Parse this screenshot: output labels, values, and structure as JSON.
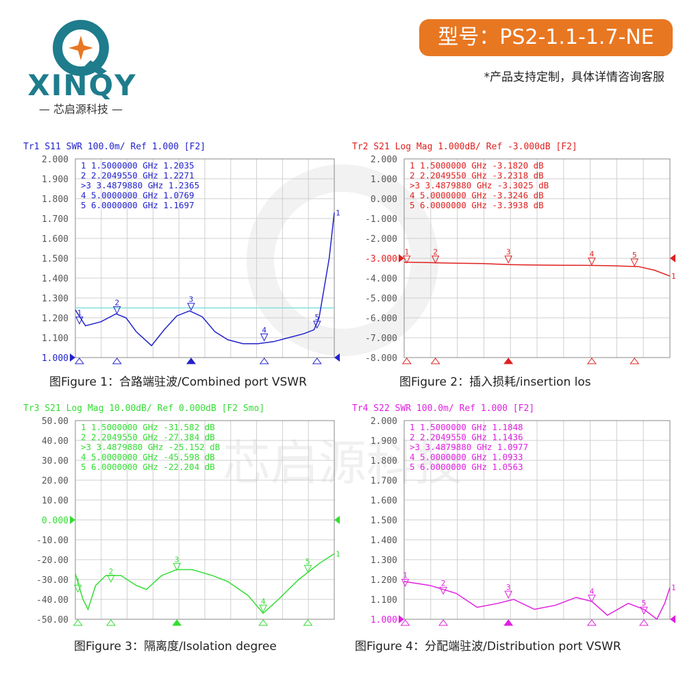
{
  "header": {
    "brand_name": "XINQY",
    "brand_subtitle": "— 芯启源科技 —",
    "model_label": "型号：PS2-1.1-1.7-NE",
    "note": "*产品支持定制，具体详情咨询客服",
    "brand_color": "#1e7c8c",
    "badge_color": "#e87722"
  },
  "watermark": {
    "text": "芯启源科技"
  },
  "captions": [
    "图Figure 1：合路端驻波/Combined port VSWR",
    "图Figure 2：插入损耗/insertion los",
    "图Figure 3：隔离度/Isolation degree",
    "图Figure 4：分配端驻波/Distribution port VSWR"
  ],
  "chart_data": [
    {
      "type": "line",
      "header": "Tr1 S11 SWR 100.0m/ Ref 1.000 [F2]",
      "color": "#2222cc",
      "ylim": [
        1.0,
        2.0
      ],
      "yticks": [
        "2.000",
        "1.900",
        "1.800",
        "1.700",
        "1.600",
        "1.500",
        "1.400",
        "1.300",
        "1.200",
        "1.100",
        "1.000"
      ],
      "ref_value": "1.000",
      "ref_line": 1.25,
      "ref_line_color": "#7fe0e0",
      "xlim": [
        1.0,
        6.1
      ],
      "marker_table": [
        {
          "id": "1",
          "freq": "1.5000000 GHz",
          "value": "1.2035"
        },
        {
          "id": "2",
          "freq": "2.2049550 GHz",
          "value": "1.2271"
        },
        {
          "id": ">3",
          "freq": "3.4879880 GHz",
          "value": "1.2365"
        },
        {
          "id": "4",
          "freq": "5.0000000 GHz",
          "value": "1.0769"
        },
        {
          "id": "5",
          "freq": "6.0000000 GHz",
          "value": "1.1697"
        }
      ],
      "markers": [
        {
          "label": "1",
          "x": 1.08,
          "y": 1.163
        },
        {
          "label": "2",
          "x": 1.82,
          "y": 1.215
        },
        {
          "label": "3",
          "x": 3.28,
          "y": 1.232
        },
        {
          "label": "4",
          "x": 4.72,
          "y": 1.078
        },
        {
          "label": "5",
          "x": 5.76,
          "y": 1.142
        }
      ],
      "points": [
        [
          1.0,
          1.24
        ],
        [
          1.2,
          1.16
        ],
        [
          1.5,
          1.18
        ],
        [
          1.8,
          1.22
        ],
        [
          2.0,
          1.2
        ],
        [
          2.2,
          1.13
        ],
        [
          2.5,
          1.06
        ],
        [
          2.75,
          1.14
        ],
        [
          3.0,
          1.21
        ],
        [
          3.25,
          1.235
        ],
        [
          3.5,
          1.205
        ],
        [
          3.75,
          1.13
        ],
        [
          4.0,
          1.09
        ],
        [
          4.3,
          1.07
        ],
        [
          4.6,
          1.07
        ],
        [
          4.9,
          1.08
        ],
        [
          5.2,
          1.1
        ],
        [
          5.5,
          1.12
        ],
        [
          5.7,
          1.14
        ],
        [
          5.8,
          1.2
        ],
        [
          5.9,
          1.35
        ],
        [
          6.0,
          1.5
        ],
        [
          6.1,
          1.73
        ]
      ]
    },
    {
      "type": "line",
      "header": "Tr2 S21 Log Mag 1.000dB/ Ref -3.000dB [F2]",
      "color": "#e02020",
      "ylim": [
        -8.0,
        2.0
      ],
      "yticks": [
        "2.000",
        "1.000",
        "0.000",
        "-1.000",
        "-2.000",
        "-3.000",
        "-4.000",
        "-5.000",
        "-6.000",
        "-7.000",
        "-8.000"
      ],
      "ref_value": "-3.000",
      "ref_line": null,
      "xlim": [
        1.0,
        6.1
      ],
      "marker_table": [
        {
          "id": "1",
          "freq": "1.5000000 GHz",
          "value": "-3.1820 dB"
        },
        {
          "id": "2",
          "freq": "2.2049550 GHz",
          "value": "-3.2318 dB"
        },
        {
          "id": ">3",
          "freq": "3.4879880 GHz",
          "value": "-3.3025 dB"
        },
        {
          "id": "4",
          "freq": "5.0000000 GHz",
          "value": "-3.3246 dB"
        },
        {
          "id": "5",
          "freq": "6.0000000 GHz",
          "value": "-3.3938 dB"
        }
      ],
      "markers": [
        {
          "label": "1",
          "x": 1.05,
          "y": -3.3
        },
        {
          "label": "2",
          "x": 1.6,
          "y": -3.3
        },
        {
          "label": "3",
          "x": 3.0,
          "y": -3.3
        },
        {
          "label": "4",
          "x": 4.6,
          "y": -3.4
        },
        {
          "label": "5",
          "x": 5.42,
          "y": -3.45
        }
      ],
      "points": [
        [
          1.0,
          -3.2
        ],
        [
          1.5,
          -3.22
        ],
        [
          2.0,
          -3.25
        ],
        [
          2.5,
          -3.27
        ],
        [
          3.0,
          -3.32
        ],
        [
          3.5,
          -3.34
        ],
        [
          4.0,
          -3.35
        ],
        [
          4.5,
          -3.36
        ],
        [
          5.0,
          -3.38
        ],
        [
          5.5,
          -3.42
        ],
        [
          5.8,
          -3.6
        ],
        [
          6.1,
          -3.9
        ]
      ]
    },
    {
      "type": "line",
      "header": "Tr3 S21 Log Mag 10.00dB/ Ref 0.000dB [F2 Smo]",
      "color": "#33dd33",
      "ylim": [
        -50.0,
        50.0
      ],
      "yticks": [
        "50.00",
        "40.00",
        "30.00",
        "20.00",
        "10.00",
        "0.000",
        "-10.00",
        "-20.00",
        "-30.00",
        "-40.00",
        "-50.00"
      ],
      "ref_value": "0.000",
      "ref_line": null,
      "xlim": [
        1.0,
        6.1
      ],
      "marker_table": [
        {
          "id": "1",
          "freq": "1.5000000 GHz",
          "value": "-31.582 dB"
        },
        {
          "id": "2",
          "freq": "2.2049550 GHz",
          "value": "-27.384 dB"
        },
        {
          "id": ">3",
          "freq": "3.4879880 GHz",
          "value": "-25.152 dB"
        },
        {
          "id": "4",
          "freq": "5.0000000 GHz",
          "value": "-45.598 dB"
        },
        {
          "id": "5",
          "freq": "6.0000000 GHz",
          "value": "-22.204 dB"
        }
      ],
      "markers": [
        {
          "label": "1",
          "x": 1.05,
          "y": -37
        },
        {
          "label": "2",
          "x": 1.7,
          "y": -32
        },
        {
          "label": "3",
          "x": 3.0,
          "y": -26
        },
        {
          "label": "4",
          "x": 4.7,
          "y": -47
        },
        {
          "label": "5",
          "x": 5.58,
          "y": -27
        }
      ],
      "points": [
        [
          1.0,
          -27
        ],
        [
          1.15,
          -40
        ],
        [
          1.25,
          -45
        ],
        [
          1.4,
          -33
        ],
        [
          1.6,
          -28
        ],
        [
          1.9,
          -28
        ],
        [
          2.2,
          -33
        ],
        [
          2.4,
          -35
        ],
        [
          2.7,
          -28
        ],
        [
          3.0,
          -25
        ],
        [
          3.3,
          -25
        ],
        [
          3.7,
          -28
        ],
        [
          4.0,
          -31
        ],
        [
          4.4,
          -38
        ],
        [
          4.7,
          -47
        ],
        [
          5.0,
          -40
        ],
        [
          5.4,
          -30
        ],
        [
          5.8,
          -22
        ],
        [
          6.1,
          -17
        ]
      ]
    },
    {
      "type": "line",
      "header": "Tr4 S22 SWR 100.0m/ Ref 1.000 [F2]",
      "color": "#e020e0",
      "ylim": [
        1.0,
        2.0
      ],
      "yticks": [
        "2.000",
        "1.900",
        "1.800",
        "1.700",
        "1.600",
        "1.500",
        "1.400",
        "1.300",
        "1.200",
        "1.100",
        "1.000"
      ],
      "ref_value": "1.000",
      "ref_line": null,
      "xlim": [
        1.0,
        6.1
      ],
      "marker_table": [
        {
          "id": "1",
          "freq": "1.5000000 GHz",
          "value": "1.1848"
        },
        {
          "id": "2",
          "freq": "2.2049550 GHz",
          "value": "1.1436"
        },
        {
          "id": ">3",
          "freq": "3.4879880 GHz",
          "value": "1.0977"
        },
        {
          "id": "4",
          "freq": "5.0000000 GHz",
          "value": "1.0933"
        },
        {
          "id": "5",
          "freq": "6.0000000 GHz",
          "value": "1.0563"
        }
      ],
      "markers": [
        {
          "label": "1",
          "x": 1.02,
          "y": 1.16
        },
        {
          "label": "2",
          "x": 1.75,
          "y": 1.12
        },
        {
          "label": "3",
          "x": 3.0,
          "y": 1.1
        },
        {
          "label": "4",
          "x": 4.6,
          "y": 1.08
        },
        {
          "label": "5",
          "x": 5.6,
          "y": 1.02
        }
      ],
      "points": [
        [
          1.0,
          1.19
        ],
        [
          1.5,
          1.17
        ],
        [
          2.0,
          1.13
        ],
        [
          2.4,
          1.06
        ],
        [
          2.8,
          1.08
        ],
        [
          3.1,
          1.1
        ],
        [
          3.5,
          1.05
        ],
        [
          3.9,
          1.07
        ],
        [
          4.3,
          1.11
        ],
        [
          4.6,
          1.09
        ],
        [
          4.9,
          1.02
        ],
        [
          5.3,
          1.08
        ],
        [
          5.6,
          1.05
        ],
        [
          5.85,
          1.0
        ],
        [
          6.0,
          1.08
        ],
        [
          6.1,
          1.16
        ]
      ]
    }
  ]
}
